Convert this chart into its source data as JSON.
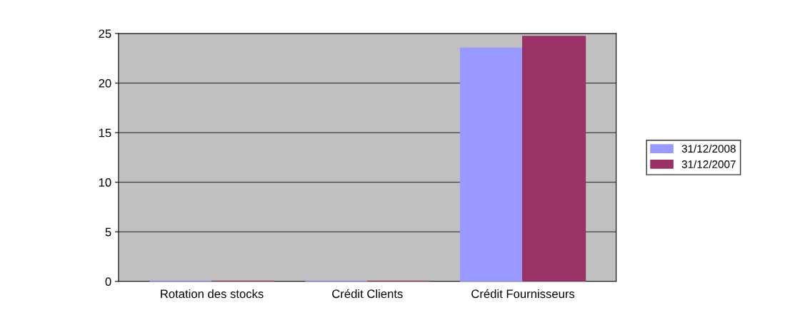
{
  "chart_data": {
    "type": "bar",
    "categories": [
      "Rotation des stocks",
      "Crédit Clients",
      "Crédit Fournisseurs"
    ],
    "series": [
      {
        "name": "31/12/2008",
        "color": "#9999ff",
        "values": [
          0,
          0,
          23.5
        ]
      },
      {
        "name": "31/12/2007",
        "color": "#993366",
        "values": [
          0,
          0,
          24.7
        ]
      }
    ],
    "ylim": [
      0,
      25
    ],
    "yticks": [
      0,
      5,
      10,
      15,
      20,
      25
    ],
    "grid": "y",
    "legend": "right"
  }
}
